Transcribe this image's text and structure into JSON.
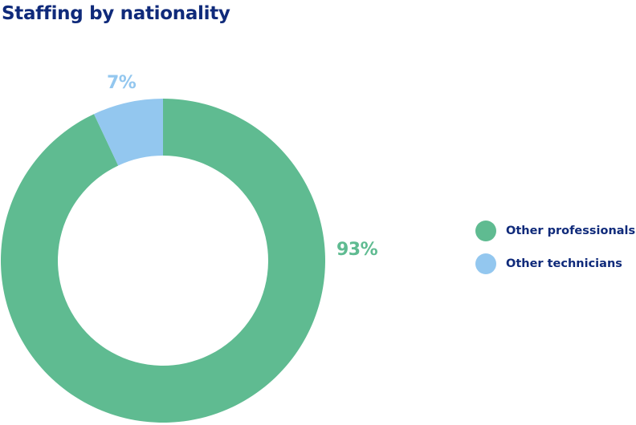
{
  "chart_data": {
    "type": "pie",
    "title": "Staffing by nationality",
    "categories": [
      "Other professionals",
      "Other technicians"
    ],
    "values": [
      93,
      7
    ],
    "value_labels": [
      "93%",
      "7%"
    ],
    "colors": [
      "#5fbb91",
      "#93c7ef"
    ],
    "label_colors": [
      "#5fbb91",
      "#93c7ef"
    ],
    "donut": true,
    "legend_position": "right"
  },
  "legend": {
    "items": [
      {
        "label": "Other professionals",
        "color": "#5fbb91"
      },
      {
        "label": "Other technicians",
        "color": "#93c7ef"
      }
    ]
  }
}
